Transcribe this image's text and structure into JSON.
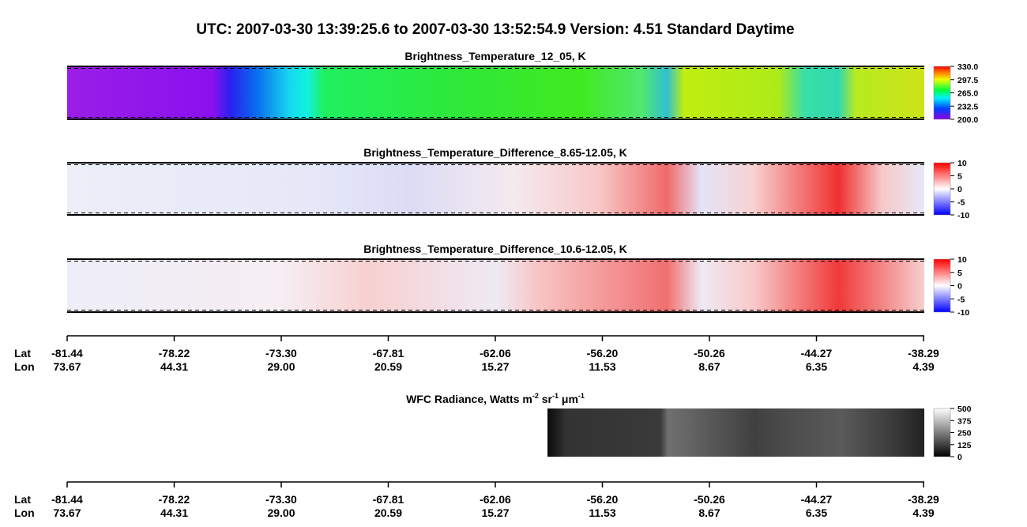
{
  "title": "UTC:  2007-03-30   13:39:25.6  to  2007-03-30   13:52:54.9    Version: 4.51  Standard Daytime",
  "panels": [
    {
      "title": "Brightness_Temperature_12_05, K",
      "colorbar_ticks": [
        {
          "value": 330,
          "label": "330.0"
        },
        {
          "value": 297.5,
          "label": "297.5"
        },
        {
          "value": 265,
          "label": "265.0"
        },
        {
          "value": 232.5,
          "label": "232.5"
        },
        {
          "value": 200,
          "label": "200.0"
        }
      ]
    },
    {
      "title": "Brightness_Temperature_Difference_8.65-12.05, K",
      "colorbar_ticks": [
        10,
        5,
        0,
        -5,
        -10
      ]
    },
    {
      "title": "Brightness_Temperature_Difference_10.6-12.05, K",
      "colorbar_ticks": [
        10,
        5,
        0,
        -5,
        -10
      ]
    }
  ],
  "wfc": {
    "title_parts": [
      "WFC Radiance, Watts m",
      "-2",
      " sr",
      "-1",
      " μm",
      "-1"
    ],
    "colorbar_ticks": [
      500,
      375,
      250,
      125,
      0
    ]
  },
  "lat_lon_axis": {
    "lat_label": "Lat",
    "lon_label": "Lon",
    "ticks": [
      {
        "lat": "-81.44",
        "lon": "73.67"
      },
      {
        "lat": "-78.22",
        "lon": "44.31"
      },
      {
        "lat": "-73.30",
        "lon": "29.00"
      },
      {
        "lat": "-67.81",
        "lon": "20.59"
      },
      {
        "lat": "-62.06",
        "lon": "15.27"
      },
      {
        "lat": "-56.20",
        "lon": "11.53"
      },
      {
        "lat": "-50.26",
        "lon": "8.67"
      },
      {
        "lat": "-44.27",
        "lon": "6.35"
      },
      {
        "lat": "-38.29",
        "lon": "4.39"
      }
    ]
  }
}
